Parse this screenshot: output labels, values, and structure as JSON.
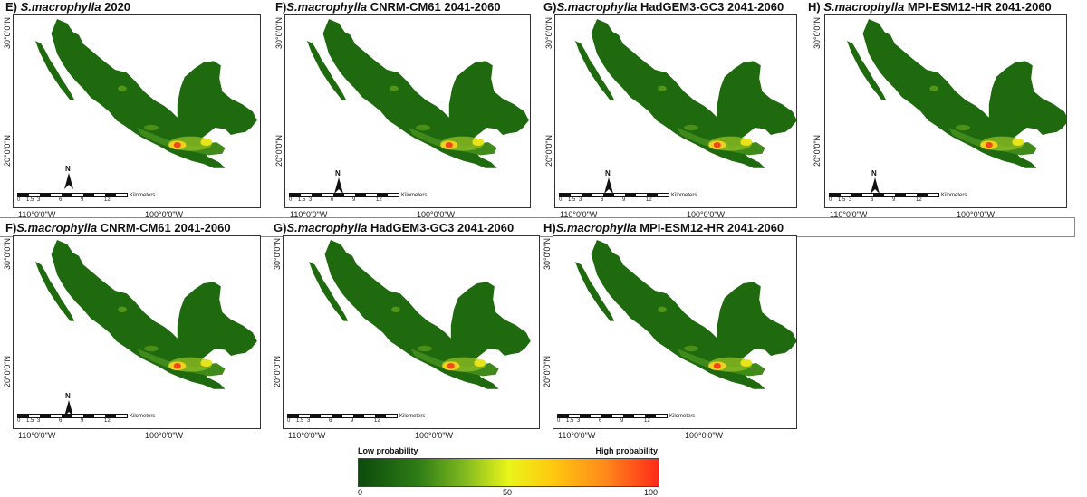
{
  "panels": [
    {
      "id": "E",
      "prefix": "E) ",
      "species": "S.macrophylla",
      "suffix": " 2020"
    },
    {
      "id": "F",
      "prefix": "F)",
      "species": "S.macrophylla",
      "suffix": " CNRM-CM61 2041-2060"
    },
    {
      "id": "G",
      "prefix": "G)",
      "species": "S.macrophylla",
      "suffix": " HadGEM3-GC3 2041-2060"
    },
    {
      "id": "H",
      "prefix": "H) ",
      "species": "S.macrophylla",
      "suffix": " MPI-ESM12-HR 2041-2060"
    },
    {
      "id": "F2",
      "prefix": "F)",
      "species": "S.macrophylla",
      "suffix": " CNRM-CM61 2041-2060"
    },
    {
      "id": "G2",
      "prefix": "G)",
      "species": "S.macrophylla",
      "suffix": " HadGEM3-GC3 2041-2060"
    },
    {
      "id": "H2",
      "prefix": "H)",
      "species": "S.macrophylla",
      "suffix": " MPI-ESM12-HR 2041-2060"
    }
  ],
  "axes": {
    "lat_top": "30°0'0\"N",
    "lat_bottom": "20°0'0\"N",
    "lon_left": "110°0'0\"W",
    "lon_right": "100°0'0\"W"
  },
  "scale": {
    "labels": [
      "0",
      "1.5",
      "3",
      "6",
      "9",
      "12"
    ],
    "unit": "Kilometers"
  },
  "north_label": "N",
  "legend": {
    "low_label": "Low probability",
    "high_label": "High probability",
    "ticks": [
      "0",
      "50",
      "100"
    ],
    "colors": [
      "#0b4a0b",
      "#2e7d16",
      "#e9f51a",
      "#ff8a1a",
      "#ff2a1a"
    ]
  }
}
